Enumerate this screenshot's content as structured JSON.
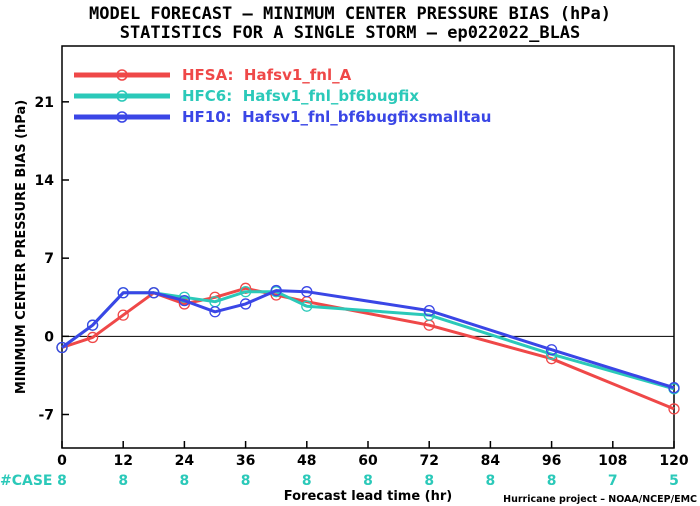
{
  "title_line1": "MODEL FORECAST – MINIMUM CENTER PRESSURE BIAS (hPa)",
  "title_line2": "STATISTICS FOR A SINGLE STORM – ep022022_BLAS",
  "credit": "Hurricane project – NOAA/NCEP/EMC",
  "case_label": "#CASE",
  "colors": {
    "hfsa": "#ef4848",
    "hfc6": "#2bc9b9",
    "hf10": "#3a46e6",
    "case": "#2bc9b9"
  },
  "chart_data": {
    "type": "line",
    "title": "MODEL FORECAST – MINIMUM CENTER PRESSURE BIAS (hPa)",
    "subtitle": "STATISTICS FOR A SINGLE STORM – ep022022_BLAS",
    "xlabel": "Forecast lead time (hr)",
    "ylabel": "MINIMUM CENTER PRESSURE BIAS (hPa)",
    "xlim": [
      0,
      120
    ],
    "ylim": [
      -10,
      26
    ],
    "x_ticks": [
      0,
      12,
      24,
      36,
      48,
      60,
      72,
      84,
      96,
      108,
      120
    ],
    "y_ticks": [
      -7,
      0,
      7,
      14,
      21
    ],
    "grid": false,
    "zero_line": true,
    "legend_position": "top-left",
    "series": [
      {
        "name": "HFSA:  Hafsv1_fnl_A",
        "color": "#ef4848",
        "x": [
          0,
          6,
          12,
          18,
          24,
          30,
          36,
          42,
          48,
          72,
          96,
          120
        ],
        "y": [
          -1.0,
          -0.1,
          1.9,
          3.9,
          2.9,
          3.5,
          4.3,
          3.7,
          3.1,
          1.0,
          -2.0,
          -6.5
        ]
      },
      {
        "name": "HFC6:  Hafsv1_fnl_bf6bugfix",
        "color": "#2bc9b9",
        "x": [
          0,
          6,
          12,
          18,
          24,
          30,
          36,
          42,
          48,
          72,
          96,
          120
        ],
        "y": [
          -1.0,
          1.0,
          3.9,
          3.9,
          3.5,
          3.1,
          4.0,
          4.0,
          2.7,
          1.9,
          -1.6,
          -4.7
        ]
      },
      {
        "name": "HF10:  Hafsv1_fnl_bf6bugfixsmalltau",
        "color": "#3a46e6",
        "x": [
          0,
          6,
          12,
          18,
          24,
          30,
          36,
          42,
          48,
          72,
          96,
          120
        ],
        "y": [
          -1.0,
          1.0,
          3.9,
          3.9,
          3.2,
          2.2,
          2.9,
          4.1,
          4.0,
          2.3,
          -1.2,
          -4.6
        ]
      }
    ],
    "case_counts": [
      {
        "x": 0,
        "n": "8"
      },
      {
        "x": 12,
        "n": "8"
      },
      {
        "x": 24,
        "n": "8"
      },
      {
        "x": 36,
        "n": "8"
      },
      {
        "x": 48,
        "n": "8"
      },
      {
        "x": 60,
        "n": "8"
      },
      {
        "x": 72,
        "n": "8"
      },
      {
        "x": 84,
        "n": "8"
      },
      {
        "x": 96,
        "n": "8"
      },
      {
        "x": 108,
        "n": "7"
      },
      {
        "x": 120,
        "n": "5"
      }
    ]
  }
}
